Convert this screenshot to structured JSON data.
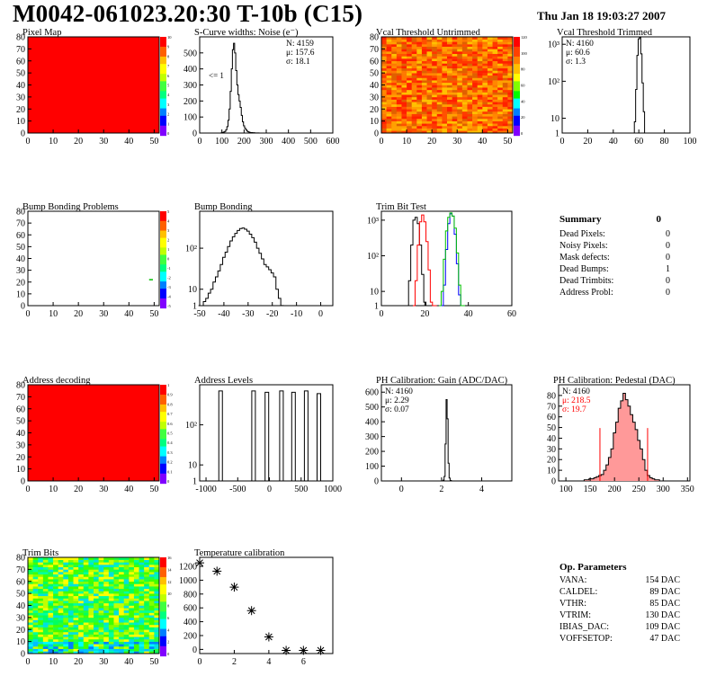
{
  "header": {
    "title": "M0042-061023.20:30 T-10b (C15)",
    "date": "Thu Jan 18 19:03:27 2007"
  },
  "colors": {
    "map_red": "#ff0000",
    "line": "#000000",
    "trim_red": "#ff0000",
    "trim_blue": "#0000ff",
    "trim_green": "#00c000",
    "pedestal_fill": "#ff9999",
    "stat_red": "#ff0000"
  },
  "chart_data": [
    {
      "id": "pixel-map",
      "type": "heatmap",
      "title": "Pixel Map",
      "x_ticks": [
        "0",
        "10",
        "20",
        "30",
        "40",
        "50"
      ],
      "y_ticks": [
        "0",
        "10",
        "20",
        "30",
        "40",
        "50",
        "60",
        "70",
        "80"
      ],
      "xlim": [
        0,
        52
      ],
      "ylim": [
        0,
        80
      ],
      "fill": "uniform",
      "fill_color": "#ff0000",
      "palette_ticks": [
        "0",
        "1",
        "2",
        "3",
        "4",
        "5",
        "6",
        "7",
        "8",
        "9",
        "10"
      ]
    },
    {
      "id": "noise",
      "type": "histogram",
      "title": "S-Curve widths: Noise (e⁻)",
      "x_ticks": [
        "0",
        "100",
        "200",
        "300",
        "400",
        "500",
        "600"
      ],
      "y_ticks": [
        "0",
        "100",
        "200",
        "300",
        "400",
        "500"
      ],
      "xlim": [
        0,
        600
      ],
      "ylim": [
        0,
        600
      ],
      "log": false,
      "annotation": "<= 1",
      "stats": [
        "N: 4159",
        "μ: 157.6",
        "σ: 18.1"
      ],
      "x": [
        100,
        105,
        110,
        115,
        120,
        125,
        130,
        135,
        140,
        145,
        150,
        155,
        160,
        165,
        170,
        175,
        180,
        185,
        190,
        195,
        200,
        205,
        210,
        215,
        220,
        225,
        230,
        235,
        240,
        245,
        250,
        255,
        260,
        265,
        270,
        275,
        280,
        285,
        290,
        295,
        300
      ],
      "values": [
        2,
        4,
        6,
        10,
        20,
        40,
        80,
        150,
        260,
        400,
        520,
        560,
        500,
        390,
        300,
        240,
        200,
        160,
        110,
        70,
        45,
        30,
        20,
        12,
        8,
        5,
        3,
        3,
        2,
        2,
        1,
        1,
        1,
        1,
        0,
        0,
        0,
        0,
        0,
        0,
        0
      ]
    },
    {
      "id": "vcal-untrimmed",
      "type": "heatmap",
      "title": "Vcal Threshold Untrimmed",
      "x_ticks": [
        "0",
        "10",
        "20",
        "30",
        "40",
        "50"
      ],
      "y_ticks": [
        "0",
        "10",
        "20",
        "30",
        "40",
        "50",
        "60",
        "70",
        "80"
      ],
      "xlim": [
        0,
        52
      ],
      "ylim": [
        0,
        80
      ],
      "fill": "noisy-orange",
      "palette_ticks": [
        "0",
        "20",
        "40",
        "60",
        "80",
        "100",
        "120"
      ]
    },
    {
      "id": "vcal-trimmed",
      "type": "histogram",
      "title": "Vcal Threshold Trimmed",
      "x_ticks": [
        "0",
        "20",
        "40",
        "60",
        "80",
        "100"
      ],
      "y_ticks": [
        "1",
        "10",
        "10²",
        "10³"
      ],
      "xlim": [
        0,
        100
      ],
      "log": true,
      "logmin": 0.6,
      "logmax": 3.2,
      "stats": [
        "N: 4160",
        "μ: 60.6",
        "σ: 1.3"
      ],
      "x": [
        56,
        57,
        58,
        59,
        60,
        61,
        62,
        63,
        64,
        65,
        66
      ],
      "values": [
        2,
        8,
        60,
        500,
        1400,
        1500,
        550,
        90,
        15,
        3,
        1
      ]
    },
    {
      "id": "bump-problems",
      "type": "heatmap",
      "title": "Bump Bonding Problems",
      "x_ticks": [
        "0",
        "10",
        "20",
        "30",
        "40",
        "50"
      ],
      "y_ticks": [
        "0",
        "10",
        "20",
        "30",
        "40",
        "50",
        "60",
        "70",
        "80"
      ],
      "xlim": [
        0,
        52
      ],
      "ylim": [
        0,
        80
      ],
      "fill": "empty",
      "palette_ticks": [
        "-5",
        "-4",
        "-3",
        "-2",
        "-1",
        "0",
        "1",
        "2",
        "3",
        "4",
        "5"
      ]
    },
    {
      "id": "bump-bonding",
      "type": "histogram",
      "title": "Bump Bonding",
      "x_ticks": [
        "-50",
        "-40",
        "-30",
        "-20",
        "-10",
        "0"
      ],
      "y_ticks": [
        "1",
        "10",
        "10²"
      ],
      "xlim": [
        -50,
        5
      ],
      "log": true,
      "logmin": 0.6,
      "logmax": 2.9,
      "x": [
        -50,
        -49,
        -48,
        -47,
        -46,
        -45,
        -44,
        -43,
        -42,
        -41,
        -40,
        -39,
        -38,
        -37,
        -36,
        -35,
        -34,
        -33,
        -32,
        -31,
        -30,
        -29,
        -28,
        -27,
        -26,
        -25,
        -24,
        -23,
        -22,
        -21,
        -20,
        -19,
        -18,
        -17,
        -16,
        -15,
        -14,
        -13,
        -12,
        -11,
        -10,
        -9,
        -8,
        -7,
        -6,
        -5,
        -4,
        -3,
        -2,
        -1,
        0
      ],
      "values": [
        3,
        3,
        5,
        6,
        8,
        10,
        15,
        20,
        28,
        40,
        60,
        80,
        110,
        150,
        190,
        230,
        270,
        300,
        310,
        290,
        260,
        220,
        180,
        140,
        100,
        75,
        55,
        40,
        35,
        30,
        25,
        20,
        10,
        6,
        4,
        2,
        1,
        1,
        0,
        0,
        1,
        0,
        0,
        0,
        0,
        0,
        0,
        0,
        0,
        0,
        1
      ]
    },
    {
      "id": "trim-bit-test",
      "type": "histogram",
      "title": "Trim Bit Test",
      "x_ticks": [
        "0",
        "20",
        "40",
        "60"
      ],
      "y_ticks": [
        "1",
        "10",
        "10²",
        "10³"
      ],
      "xlim": [
        0,
        60
      ],
      "log": true,
      "logmin": 0.6,
      "logmax": 3.25,
      "series": [
        {
          "color": "#000000",
          "x": [
            12,
            13,
            14,
            15,
            16,
            17,
            18,
            19,
            20,
            21,
            22
          ],
          "values": [
            2,
            20,
            200,
            1000,
            1200,
            800,
            200,
            30,
            5,
            1,
            1
          ]
        },
        {
          "color": "#ff0000",
          "x": [
            15,
            16,
            17,
            18,
            19,
            20,
            21,
            22,
            23,
            24,
            25
          ],
          "values": [
            2,
            20,
            200,
            900,
            1400,
            900,
            250,
            40,
            5,
            1,
            1
          ]
        },
        {
          "color": "#0000ff",
          "x": [
            28,
            29,
            30,
            31,
            32,
            33,
            34,
            35,
            36,
            37,
            38
          ],
          "values": [
            2,
            15,
            150,
            800,
            1500,
            1300,
            400,
            60,
            8,
            1,
            1
          ]
        },
        {
          "color": "#00c000",
          "x": [
            27,
            28,
            29,
            30,
            31,
            32,
            33,
            34,
            35,
            36,
            37,
            38
          ],
          "values": [
            1,
            10,
            80,
            500,
            1200,
            1600,
            1300,
            600,
            120,
            15,
            2,
            1
          ]
        }
      ]
    },
    {
      "id": "address-decoding",
      "type": "heatmap",
      "title": "Address decoding",
      "x_ticks": [
        "0",
        "10",
        "20",
        "30",
        "40",
        "50"
      ],
      "y_ticks": [
        "0",
        "10",
        "20",
        "30",
        "40",
        "50",
        "60",
        "70",
        "80"
      ],
      "xlim": [
        0,
        52
      ],
      "ylim": [
        0,
        80
      ],
      "fill": "uniform",
      "fill_color": "#ff0000",
      "palette_ticks": [
        "0",
        "0.1",
        "0.2",
        "0.3",
        "0.4",
        "0.5",
        "0.6",
        "0.7",
        "0.8",
        "0.9",
        "1"
      ]
    },
    {
      "id": "address-levels",
      "type": "histogram",
      "title": "Address Levels",
      "x_ticks": [
        "-1000",
        "-500",
        "0",
        "500",
        "1000"
      ],
      "y_ticks": [
        "1",
        "10",
        "10²"
      ],
      "xlim": [
        -1100,
        1000
      ],
      "log": true,
      "logmin": 0.6,
      "logmax": 3.0,
      "peaks": [
        -770,
        -250,
        -40,
        190,
        380,
        580,
        780
      ],
      "peak_values": [
        700,
        700,
        650,
        700,
        650,
        700,
        600
      ]
    },
    {
      "id": "ph-gain",
      "type": "histogram",
      "title": "PH Calibration: Gain (ADC/DAC)",
      "x_ticks": [
        "0",
        "2",
        "4"
      ],
      "y_ticks": [
        "0",
        "100",
        "200",
        "300",
        "400",
        "500",
        "600"
      ],
      "xlim": [
        -1,
        5.5
      ],
      "ylim": [
        0,
        650
      ],
      "log": false,
      "stats": [
        "N: 4160",
        "μ: 2.29",
        "σ: 0.07"
      ],
      "x": [
        2.05,
        2.1,
        2.15,
        2.2,
        2.25,
        2.3,
        2.35,
        2.4,
        2.45,
        2.5
      ],
      "values": [
        1,
        5,
        30,
        250,
        550,
        420,
        120,
        20,
        3,
        1
      ]
    },
    {
      "id": "ph-pedestal",
      "type": "histogram",
      "title": "PH Calibration: Pedestal (DAC)",
      "x_ticks": [
        "100",
        "150",
        "200",
        "250",
        "300",
        "350"
      ],
      "y_ticks": [
        "0",
        "10",
        "20",
        "30",
        "40",
        "50",
        "60",
        "70",
        "80"
      ],
      "xlim": [
        85,
        355
      ],
      "ylim": [
        0,
        90
      ],
      "log": false,
      "stats": [
        "N: 4160",
        "μ: 218.5",
        "σ: 19.7"
      ],
      "cut_lines": [
        170,
        268
      ],
      "x": [
        140,
        145,
        150,
        155,
        160,
        165,
        170,
        175,
        180,
        185,
        190,
        195,
        200,
        205,
        210,
        215,
        220,
        225,
        230,
        235,
        240,
        245,
        250,
        255,
        260,
        265,
        270,
        275,
        280,
        285,
        290
      ],
      "values": [
        1,
        1,
        2,
        2,
        3,
        4,
        5,
        6,
        10,
        15,
        22,
        30,
        45,
        55,
        68,
        75,
        82,
        76,
        70,
        62,
        55,
        48,
        38,
        30,
        20,
        10,
        5,
        3,
        2,
        1,
        1
      ]
    },
    {
      "id": "trim-bits",
      "type": "heatmap",
      "title": "Trim Bits",
      "x_ticks": [
        "0",
        "10",
        "20",
        "30",
        "40",
        "50"
      ],
      "y_ticks": [
        "0",
        "10",
        "20",
        "30",
        "40",
        "50",
        "60",
        "70",
        "80"
      ],
      "xlim": [
        0,
        52
      ],
      "ylim": [
        0,
        80
      ],
      "fill": "noisy-green",
      "palette_ticks": [
        "0",
        "2",
        "4",
        "6",
        "8",
        "10",
        "12",
        "14",
        "16"
      ]
    },
    {
      "id": "temperature-calibration",
      "type": "scatter",
      "title": "Temperature calibration",
      "x_ticks": [
        "0",
        "2",
        "4",
        "6"
      ],
      "y_ticks": [
        "0",
        "200",
        "400",
        "600",
        "800",
        "1000",
        "1200"
      ],
      "xlim": [
        0,
        7.7
      ],
      "ylim": [
        -60,
        1330
      ],
      "x": [
        0,
        1,
        2,
        3,
        4,
        5,
        6,
        7
      ],
      "values": [
        1250,
        1130,
        900,
        560,
        180,
        -15,
        -15,
        -15
      ]
    }
  ],
  "summary": {
    "title": "Summary",
    "value": "0",
    "rows": [
      {
        "label": "Dead Pixels:",
        "value": "0"
      },
      {
        "label": "Noisy Pixels:",
        "value": "0"
      },
      {
        "label": "Mask defects:",
        "value": "0"
      },
      {
        "label": "Dead Bumps:",
        "value": "1"
      },
      {
        "label": "Dead Trimbits:",
        "value": "0"
      },
      {
        "label": "Address Probl:",
        "value": "0"
      }
    ]
  },
  "op_parameters": {
    "title": "Op. Parameters",
    "rows": [
      {
        "label": "VANA:",
        "value": "154 DAC"
      },
      {
        "label": "CALDEL:",
        "value": "89 DAC"
      },
      {
        "label": "VTHR:",
        "value": "85 DAC"
      },
      {
        "label": "VTRIM:",
        "value": "130 DAC"
      },
      {
        "label": "IBIAS_DAC:",
        "value": "109 DAC"
      },
      {
        "label": "VOFFSETOP:",
        "value": "47 DAC"
      }
    ]
  }
}
